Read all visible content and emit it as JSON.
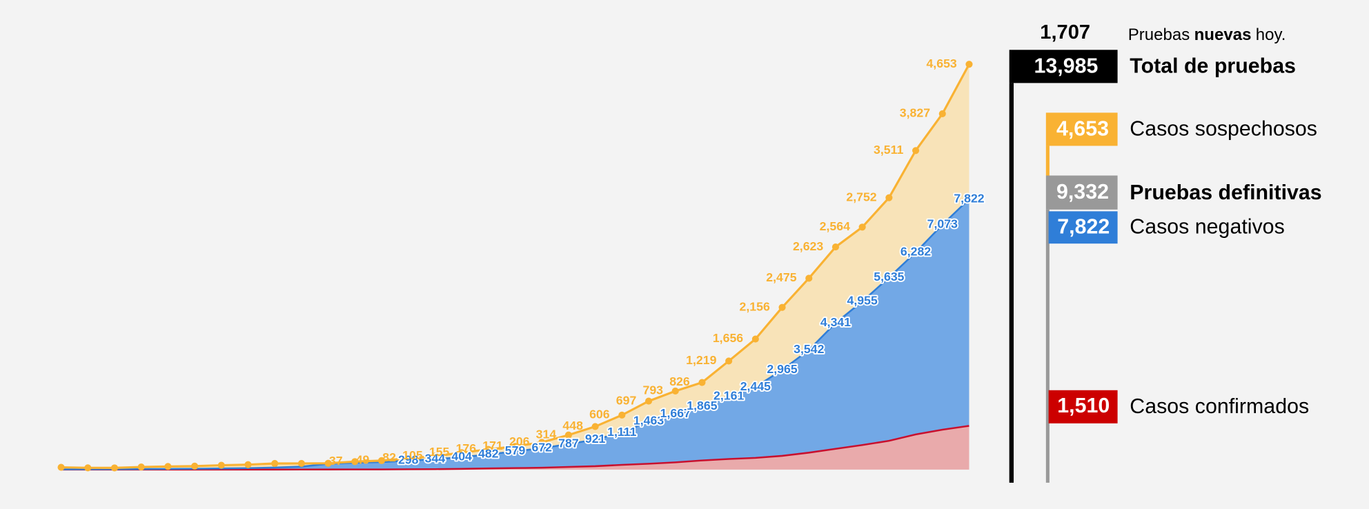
{
  "chart_data": {
    "type": "stacked-area",
    "categories": [
      null,
      null,
      null,
      null,
      null,
      null,
      null,
      null,
      null,
      null,
      null,
      null,
      null,
      null,
      null,
      null,
      null,
      null,
      null,
      null,
      null,
      null,
      null,
      null,
      null,
      null,
      null,
      null,
      null,
      null,
      null,
      null,
      null,
      null,
      null
    ],
    "ylim": [
      0,
      14000
    ],
    "series": [
      {
        "name": "Casos confirmados",
        "color": "#c8102e",
        "fill": "#e9aaab",
        "values": [
          0,
          0,
          0,
          0,
          0,
          0,
          1,
          1,
          2,
          3,
          5,
          6,
          7,
          12,
          16,
          26,
          41,
          53,
          65,
          93,
          118,
          164,
          203,
          251,
          316,
          367,
          405,
          475,
          585,
          717,
          848,
          993,
          1215,
          1378,
          1510
        ],
        "value_labels": [
          null,
          null,
          null,
          null,
          null,
          null,
          null,
          null,
          null,
          null,
          null,
          null,
          null,
          null,
          null,
          null,
          null,
          null,
          null,
          null,
          null,
          null,
          null,
          null,
          null,
          null,
          null,
          null,
          null,
          null,
          null,
          null,
          null,
          null,
          null
        ]
      },
      {
        "name": "Casos negativos",
        "color": "#2f7ed8",
        "fill": "#72a8e6",
        "values": [
          10,
          12,
          15,
          20,
          25,
          30,
          40,
          50,
          70,
          100,
          194,
          234,
          254,
          298,
          344,
          404,
          482,
          579,
          672,
          787,
          921,
          1111,
          1463,
          1667,
          1865,
          2161,
          2445,
          2965,
          3542,
          4341,
          4955,
          5635,
          6282,
          7073,
          7822
        ],
        "value_labels": [
          null,
          null,
          null,
          null,
          null,
          null,
          null,
          null,
          null,
          null,
          null,
          null,
          null,
          "298",
          "344",
          "404",
          "482",
          "579",
          "672",
          "787",
          "921",
          "1,111",
          "1,463",
          "1,667",
          "1,865",
          "2,161",
          "2,445",
          "2,965",
          "3,542",
          "4,341",
          "4,955",
          "5,635",
          "6,282",
          "7,073",
          "7,822"
        ]
      },
      {
        "name": "Casos sospechosos",
        "color": "#f9b233",
        "fill": "#f8e3b8",
        "values": [
          70,
          50,
          45,
          70,
          85,
          90,
          110,
          120,
          140,
          110,
          20,
          37,
          49,
          82,
          105,
          155,
          176,
          171,
          206,
          314,
          448,
          606,
          697,
          793,
          826,
          1219,
          1656,
          2156,
          2475,
          2623,
          2564,
          2752,
          3511,
          3827,
          4653
        ],
        "value_labels": [
          null,
          null,
          null,
          null,
          null,
          null,
          null,
          null,
          null,
          null,
          null,
          "37",
          "49",
          "82",
          "105",
          "155",
          "176",
          "171",
          "206",
          "314",
          "448",
          "606",
          "697",
          "793",
          "826",
          "1,219",
          "1,656",
          "2,156",
          "2,475",
          "2,623",
          "2,564",
          "2,752",
          "3,511",
          "3,827",
          "4,653"
        ]
      }
    ]
  },
  "panel": {
    "new_tests": "1,707",
    "new_tests_note": [
      "Pruebas",
      "nuevas",
      "hoy."
    ],
    "total_tests": "13,985",
    "total_label": "Total de pruebas",
    "suspected": "4,653",
    "suspected_label": "Casos sospechosos",
    "definitive": "9,332",
    "definitive_label": "Pruebas definitivas",
    "negative": "7,822",
    "negative_label": "Casos negativos",
    "confirmed": "1,510",
    "confirmed_label": "Casos confirmados"
  }
}
